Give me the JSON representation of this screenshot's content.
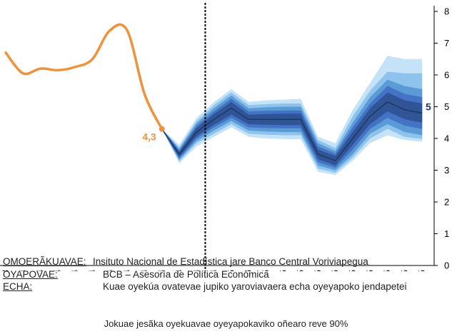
{
  "chart_data": {
    "type": "fan",
    "x_labels": [
      "dic-13",
      "ene-14",
      "feb-14",
      "mar-14",
      "abr-14",
      "may-14",
      "jun-14",
      "jul-14",
      "ago-14",
      "sep-14",
      "oct-14",
      "nov-14",
      "dic-14",
      "ene-15",
      "feb-15",
      "mar-15",
      "abr-15",
      "may-15",
      "jun-15",
      "jul-15",
      "ago-15",
      "sep-15",
      "oct-15",
      "nov-15",
      "dic-15"
    ],
    "historical": {
      "x": [
        0,
        1,
        2,
        3,
        4,
        5,
        6,
        7,
        8,
        9
      ],
      "y": [
        6.7,
        6.05,
        6.2,
        6.15,
        6.25,
        6.5,
        7.4,
        7.4,
        5.4,
        4.3
      ],
      "color": "#F0923B"
    },
    "last_value_label": "4,3",
    "forecast": {
      "x": [
        9,
        10,
        11,
        12,
        13,
        14,
        15,
        16,
        17,
        18,
        19,
        20,
        21,
        22,
        23,
        24
      ],
      "median": [
        4.3,
        3.5,
        4.2,
        4.6,
        4.95,
        4.6,
        4.6,
        4.6,
        4.6,
        3.5,
        3.3,
        4.0,
        4.7,
        5.15,
        4.9,
        4.8
      ],
      "bands": [
        {
          "lo": [
            4.3,
            3.42,
            4.07,
            4.43,
            4.75,
            4.45,
            4.43,
            4.42,
            4.42,
            3.35,
            3.15,
            3.8,
            4.45,
            4.85,
            4.6,
            4.5
          ],
          "hi": [
            4.3,
            3.58,
            4.33,
            4.77,
            5.15,
            4.75,
            4.77,
            4.78,
            4.78,
            3.65,
            3.45,
            4.2,
            4.95,
            5.45,
            5.2,
            5.1
          ]
        },
        {
          "lo": [
            4.3,
            3.38,
            4.0,
            4.35,
            4.65,
            4.35,
            4.33,
            4.32,
            4.32,
            3.25,
            3.08,
            3.65,
            4.3,
            4.65,
            4.4,
            4.3
          ],
          "hi": [
            4.3,
            3.62,
            4.4,
            4.85,
            5.25,
            4.85,
            4.87,
            4.88,
            4.88,
            3.75,
            3.52,
            4.35,
            5.1,
            5.65,
            5.4,
            5.3
          ]
        },
        {
          "lo": [
            4.3,
            3.33,
            3.92,
            4.25,
            4.55,
            4.25,
            4.22,
            4.2,
            4.2,
            3.15,
            3.0,
            3.5,
            4.15,
            4.45,
            4.2,
            4.1
          ],
          "hi": [
            4.3,
            3.67,
            4.48,
            4.95,
            5.35,
            4.95,
            4.98,
            5.0,
            5.0,
            3.85,
            3.6,
            4.5,
            5.3,
            5.85,
            5.65,
            5.55
          ]
        },
        {
          "lo": [
            4.3,
            3.28,
            3.85,
            4.15,
            4.45,
            4.15,
            4.12,
            4.1,
            4.1,
            3.05,
            2.92,
            3.4,
            4.0,
            4.3,
            4.05,
            3.98
          ],
          "hi": [
            4.3,
            3.72,
            4.55,
            5.05,
            5.45,
            5.05,
            5.08,
            5.1,
            5.1,
            3.95,
            3.7,
            4.7,
            5.5,
            6.1,
            6.05,
            6.05
          ]
        },
        {
          "lo": [
            4.3,
            3.22,
            3.75,
            4.05,
            4.35,
            4.05,
            4.0,
            3.98,
            3.98,
            2.95,
            2.85,
            3.3,
            3.85,
            4.1,
            3.95,
            3.9
          ],
          "hi": [
            4.3,
            3.8,
            4.65,
            5.15,
            5.55,
            5.15,
            5.2,
            5.22,
            5.25,
            4.05,
            3.85,
            4.9,
            5.75,
            6.6,
            6.5,
            6.5
          ]
        }
      ],
      "band_colors": [
        "#2F5597",
        "#4472C4",
        "#5B9BD5",
        "#8DC3EC",
        "#C5E3F8"
      ],
      "median_color": "#1F3864"
    },
    "divider_x": 11.5,
    "y_axis": {
      "min": 0,
      "max": 8,
      "ticks": [
        0,
        1,
        2,
        3,
        4,
        5,
        6,
        7,
        8
      ],
      "position": "right"
    },
    "right_label": "5"
  },
  "notes": {
    "source_key": "OMOERÃKUAVAE:",
    "source_val": "Insituto Nacional de Estadística jare Banco Central Voriviapegua",
    "author_key": "OYAPOVAE:",
    "author_val": "BCB – Asesoría de Política Económica",
    "note_key": "ECHA:",
    "note_val": "Kuae oyekúa ovatevae jupiko yaroviavaera echa oyeyapoko jendapetei"
  },
  "footer": "Jokuae jesãka oyekuavae oyeyapokaviko oñearo reve 90%"
}
